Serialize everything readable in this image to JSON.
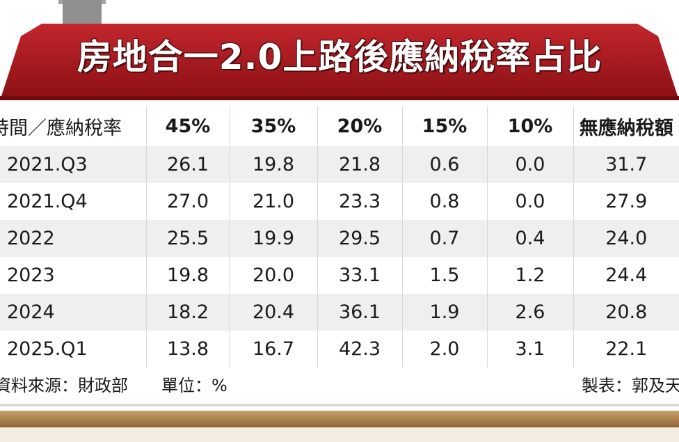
{
  "title": "房地合一2.0上路後應納稅率占比",
  "footer": {
    "source": "資料來源：財政部",
    "unit": "單位：%",
    "maker": "製表：郭及天"
  },
  "colors": {
    "roof": "#a6181e",
    "foundation": "#a97b46",
    "row_stripe": "#efefef"
  },
  "chart_data": {
    "type": "table",
    "title": "房地合一2.0上路後應納稅率占比",
    "columns": [
      "時間／應納稅率",
      "45%",
      "35%",
      "20%",
      "15%",
      "10%",
      "無應納稅額"
    ],
    "rows": [
      [
        "2021.Q3",
        "26.1",
        "19.8",
        "21.8",
        "0.6",
        "0.0",
        "31.7"
      ],
      [
        "2021.Q4",
        "27.0",
        "21.0",
        "23.3",
        "0.8",
        "0.0",
        "27.9"
      ],
      [
        "2022",
        "25.5",
        "19.9",
        "29.5",
        "0.7",
        "0.4",
        "24.0"
      ],
      [
        "2023",
        "19.8",
        "20.0",
        "33.1",
        "1.5",
        "1.2",
        "24.4"
      ],
      [
        "2024",
        "18.2",
        "20.4",
        "36.1",
        "1.9",
        "2.6",
        "20.8"
      ],
      [
        "2025.Q1",
        "13.8",
        "16.7",
        "42.3",
        "2.0",
        "3.1",
        "22.1"
      ]
    ]
  }
}
